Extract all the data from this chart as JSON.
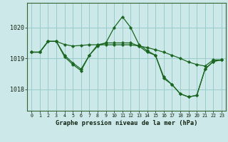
{
  "bg_color": "#cce8e8",
  "grid_color": "#99cccc",
  "line_color": "#1a6620",
  "title": "Graphe pression niveau de la mer (hPa)",
  "ylim": [
    1017.3,
    1020.8
  ],
  "xlim": [
    -0.5,
    23.5
  ],
  "yticks": [
    1018,
    1019,
    1020
  ],
  "xticks": [
    0,
    1,
    2,
    3,
    4,
    5,
    6,
    7,
    8,
    9,
    10,
    11,
    12,
    13,
    14,
    15,
    16,
    17,
    18,
    19,
    20,
    21,
    22,
    23
  ],
  "series": [
    [
      1019.2,
      1019.2,
      1019.55,
      1019.55,
      1019.05,
      1018.8,
      1018.6,
      1019.1,
      1019.4,
      1019.5,
      1020.0,
      1020.35,
      1020.0,
      1019.45,
      1019.25,
      1019.1,
      1018.35,
      1018.15,
      1017.85,
      1017.75,
      1017.8,
      1018.65,
      1018.9,
      1018.95
    ],
    [
      1019.2,
      1019.2,
      1019.55,
      1019.55,
      1019.45,
      1019.4,
      1019.42,
      1019.44,
      1019.44,
      1019.44,
      1019.44,
      1019.44,
      1019.44,
      1019.4,
      1019.35,
      1019.28,
      1019.2,
      1019.1,
      1019.0,
      1018.88,
      1018.8,
      1018.75,
      1018.95,
      1018.95
    ],
    [
      1019.2,
      1019.2,
      1019.55,
      1019.55,
      1019.1,
      1018.85,
      1018.65,
      1019.1,
      1019.44,
      1019.5,
      1019.5,
      1019.5,
      1019.5,
      1019.4,
      1019.2,
      1019.1,
      1018.4,
      1018.15,
      1017.85,
      1017.75,
      1017.8,
      1018.65,
      1018.9,
      1018.95
    ]
  ]
}
